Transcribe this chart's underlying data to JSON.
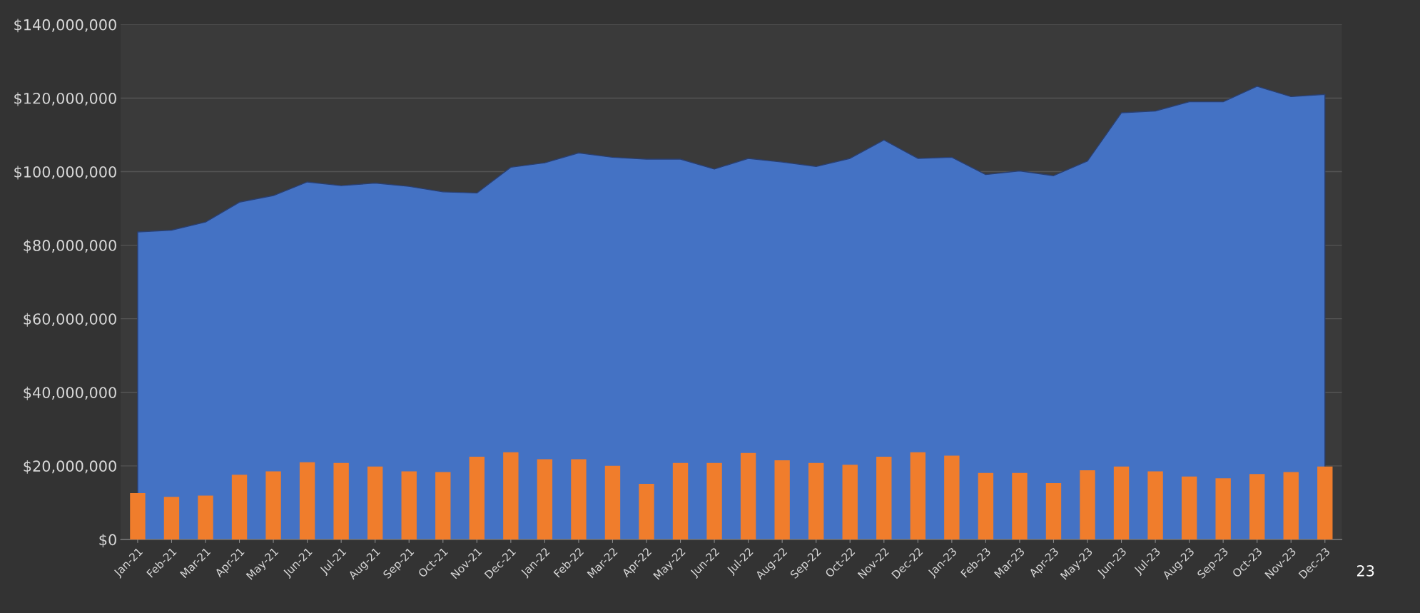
{
  "chart_data": {
    "type": "bar",
    "categories": [
      "Jan-21",
      "Feb-21",
      "Mar-21",
      "Apr-21",
      "May-21",
      "Jun-21",
      "Jul-21",
      "Aug-21",
      "Sep-21",
      "Oct-21",
      "Nov-21",
      "Dec-21",
      "Jan-22",
      "Feb-22",
      "Mar-22",
      "Apr-22",
      "May-22",
      "Jun-22",
      "Jul-22",
      "Aug-22",
      "Sep-22",
      "Oct-22",
      "Nov-22",
      "Dec-22",
      "Jan-23",
      "Feb-23",
      "Mar-23",
      "Apr-23",
      "May-23",
      "Jun-23",
      "Jul-23",
      "Aug-23",
      "Sep-23",
      "Oct-23",
      "Nov-23",
      "Dec-23"
    ],
    "series": [
      {
        "type": "area",
        "color": "#4472c4",
        "values": [
          83600000,
          84100000,
          86300000,
          91700000,
          93500000,
          97200000,
          96200000,
          96900000,
          96000000,
          94500000,
          94200000,
          101200000,
          102400000,
          105100000,
          103900000,
          103400000,
          103400000,
          100700000,
          103600000,
          102600000,
          101400000,
          103600000,
          108600000,
          103600000,
          103900000,
          99200000,
          100200000,
          98900000,
          102900000,
          116000000,
          116500000,
          119000000,
          119000000,
          123200000,
          120400000,
          121000000
        ]
      },
      {
        "color": "#f07d2c",
        "values": [
          12600000,
          11600000,
          11900000,
          17600000,
          18500000,
          21000000,
          20800000,
          19800000,
          18500000,
          18300000,
          22500000,
          23700000,
          21800000,
          21800000,
          20000000,
          15100000,
          20800000,
          20800000,
          23500000,
          21500000,
          20800000,
          20300000,
          22500000,
          23700000,
          22800000,
          18100000,
          18100000,
          15300000,
          18800000,
          19800000,
          18500000,
          17100000,
          16600000,
          17800000,
          18300000,
          19800000
        ]
      }
    ],
    "ylim": [
      0,
      140000000
    ],
    "yticks": [
      {
        "value": 0,
        "label": "$0"
      },
      {
        "value": 20000000,
        "label": "$20,000,000"
      },
      {
        "value": 40000000,
        "label": "$40,000,000"
      },
      {
        "value": 60000000,
        "label": "$60,000,000"
      },
      {
        "value": 80000000,
        "label": "$80,000,000"
      },
      {
        "value": 100000000,
        "label": "$100,000,000"
      },
      {
        "value": 120000000,
        "label": "$120,000,000"
      },
      {
        "value": 140000000,
        "label": "$140,000,000"
      }
    ],
    "grid": "y",
    "annotations": [
      "23"
    ]
  }
}
